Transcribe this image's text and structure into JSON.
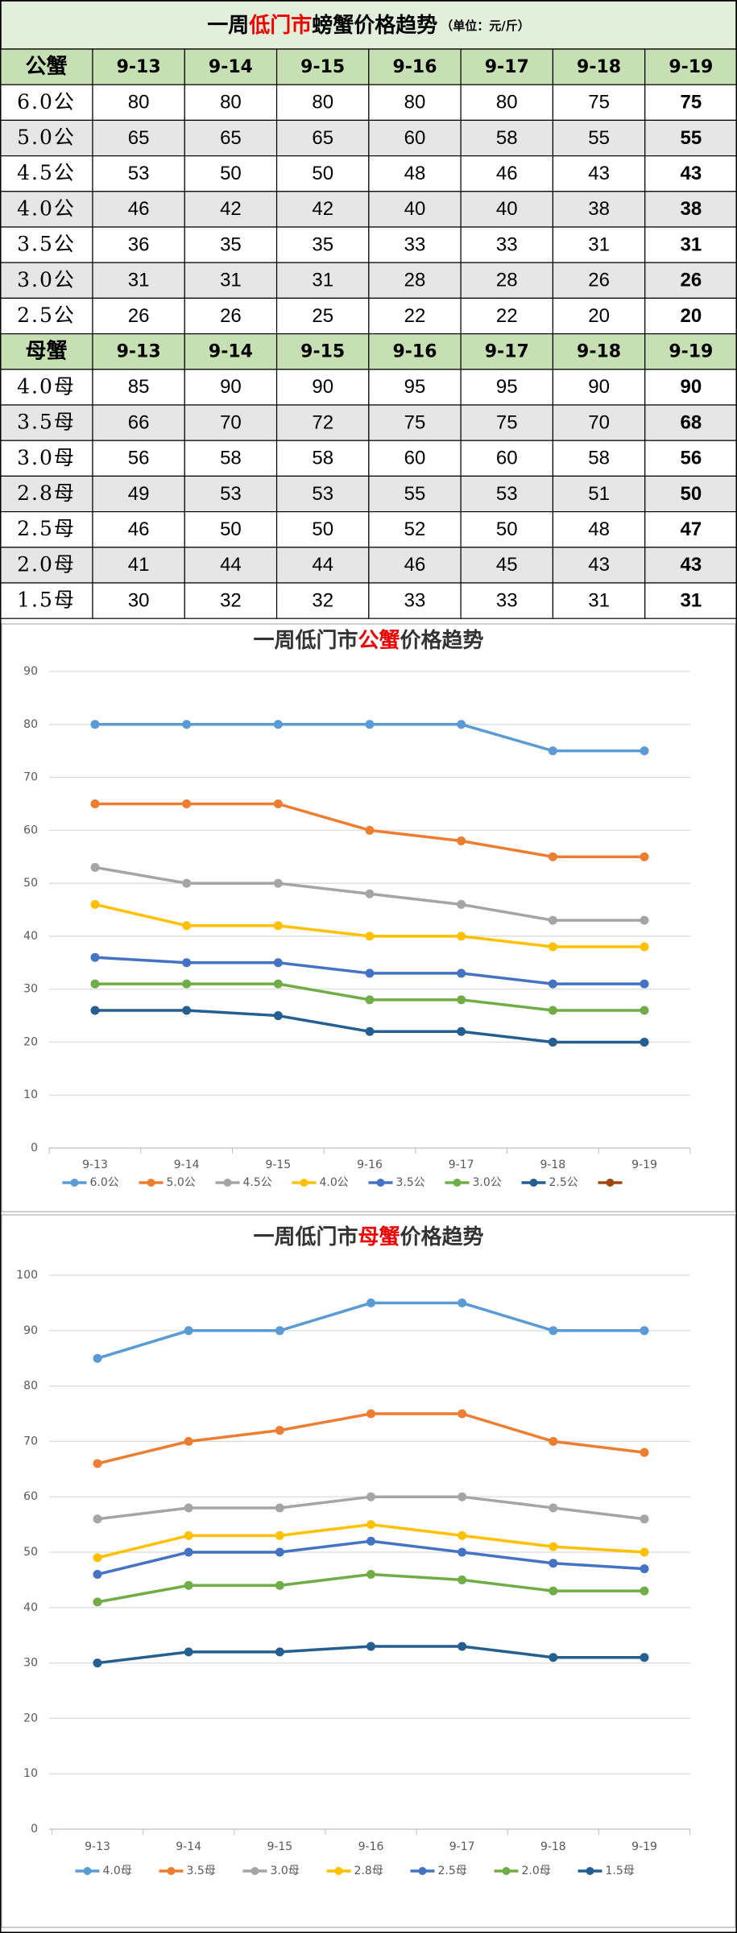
{
  "header": {
    "title_parts": [
      "一周",
      "低门市",
      "螃蟹价格趋势"
    ],
    "unit": "（单位：元/斤）"
  },
  "table": {
    "male": {
      "header": [
        "公蟹",
        "9-13",
        "9-14",
        "9-15",
        "9-16",
        "9-17",
        "9-18",
        "9-19"
      ],
      "rows": [
        [
          "6.0公",
          80,
          80,
          80,
          80,
          80,
          75,
          75
        ],
        [
          "5.0公",
          65,
          65,
          65,
          60,
          58,
          55,
          55
        ],
        [
          "4.5公",
          53,
          50,
          50,
          48,
          46,
          43,
          43
        ],
        [
          "4.0公",
          46,
          42,
          42,
          40,
          40,
          38,
          38
        ],
        [
          "3.5公",
          36,
          35,
          35,
          33,
          33,
          31,
          31
        ],
        [
          "3.0公",
          31,
          31,
          31,
          28,
          28,
          26,
          26
        ],
        [
          "2.5公",
          26,
          26,
          25,
          22,
          22,
          20,
          20
        ]
      ]
    },
    "female": {
      "header": [
        "母蟹",
        "9-13",
        "9-14",
        "9-15",
        "9-16",
        "9-17",
        "9-18",
        "9-19"
      ],
      "rows": [
        [
          "4.0母",
          85,
          90,
          90,
          95,
          95,
          90,
          90
        ],
        [
          "3.5母",
          66,
          70,
          72,
          75,
          75,
          70,
          68
        ],
        [
          "3.0母",
          56,
          58,
          58,
          60,
          60,
          58,
          56
        ],
        [
          "2.8母",
          49,
          53,
          53,
          55,
          53,
          51,
          50
        ],
        [
          "2.5母",
          46,
          50,
          50,
          52,
          50,
          48,
          47
        ],
        [
          "2.0母",
          41,
          44,
          44,
          46,
          45,
          43,
          43
        ],
        [
          "1.5母",
          30,
          32,
          32,
          33,
          33,
          31,
          31
        ]
      ]
    }
  },
  "chart_data": [
    {
      "type": "line",
      "title_parts": [
        "一周低门市",
        "公蟹",
        "价格趋势"
      ],
      "categories": [
        "9-13",
        "9-14",
        "9-15",
        "9-16",
        "9-17",
        "9-18",
        "9-19"
      ],
      "ylim": [
        0,
        90
      ],
      "yticks": [
        0,
        10,
        20,
        30,
        40,
        50,
        60,
        70,
        80,
        90
      ],
      "grid": true,
      "legend": "bottom",
      "series": [
        {
          "name": "6.0公",
          "color": "#5b9bd5",
          "values": [
            80,
            80,
            80,
            80,
            80,
            75,
            75
          ]
        },
        {
          "name": "5.0公",
          "color": "#ed7d31",
          "values": [
            65,
            65,
            65,
            60,
            58,
            55,
            55
          ]
        },
        {
          "name": "4.5公",
          "color": "#a5a5a5",
          "values": [
            53,
            50,
            50,
            48,
            46,
            43,
            43
          ]
        },
        {
          "name": "4.0公",
          "color": "#ffc000",
          "values": [
            46,
            42,
            42,
            40,
            40,
            38,
            38
          ]
        },
        {
          "name": "3.5公",
          "color": "#4472c4",
          "values": [
            36,
            35,
            35,
            33,
            33,
            31,
            31
          ]
        },
        {
          "name": "3.0公",
          "color": "#70ad47",
          "values": [
            31,
            31,
            31,
            28,
            28,
            26,
            26
          ]
        },
        {
          "name": "2.5公",
          "color": "#255e91",
          "values": [
            26,
            26,
            25,
            22,
            22,
            20,
            20
          ]
        },
        {
          "name": null,
          "color": "#9e480e",
          "values": [
            null,
            null,
            null,
            null,
            null,
            null,
            null
          ]
        }
      ]
    },
    {
      "type": "line",
      "title_parts": [
        "一周低门市",
        "母蟹",
        "价格趋势"
      ],
      "categories": [
        "9-13",
        "9-14",
        "9-15",
        "9-16",
        "9-17",
        "9-18",
        "9-19"
      ],
      "ylim": [
        0,
        100
      ],
      "yticks": [
        0,
        10,
        20,
        30,
        40,
        50,
        60,
        70,
        80,
        90,
        100
      ],
      "grid": true,
      "legend": "bottom",
      "series": [
        {
          "name": "4.0母",
          "color": "#5b9bd5",
          "values": [
            85,
            90,
            90,
            95,
            95,
            90,
            90
          ]
        },
        {
          "name": "3.5母",
          "color": "#ed7d31",
          "values": [
            66,
            70,
            72,
            75,
            75,
            70,
            68
          ]
        },
        {
          "name": "3.0母",
          "color": "#a5a5a5",
          "values": [
            56,
            58,
            58,
            60,
            60,
            58,
            56
          ]
        },
        {
          "name": "2.8母",
          "color": "#ffc000",
          "values": [
            49,
            53,
            53,
            55,
            53,
            51,
            50
          ]
        },
        {
          "name": "2.5母",
          "color": "#4472c4",
          "values": [
            46,
            50,
            50,
            52,
            50,
            48,
            47
          ]
        },
        {
          "name": "2.0母",
          "color": "#70ad47",
          "values": [
            41,
            44,
            44,
            46,
            45,
            43,
            43
          ]
        },
        {
          "name": "1.5母",
          "color": "#255e91",
          "values": [
            30,
            32,
            32,
            33,
            33,
            31,
            31
          ]
        }
      ]
    }
  ]
}
